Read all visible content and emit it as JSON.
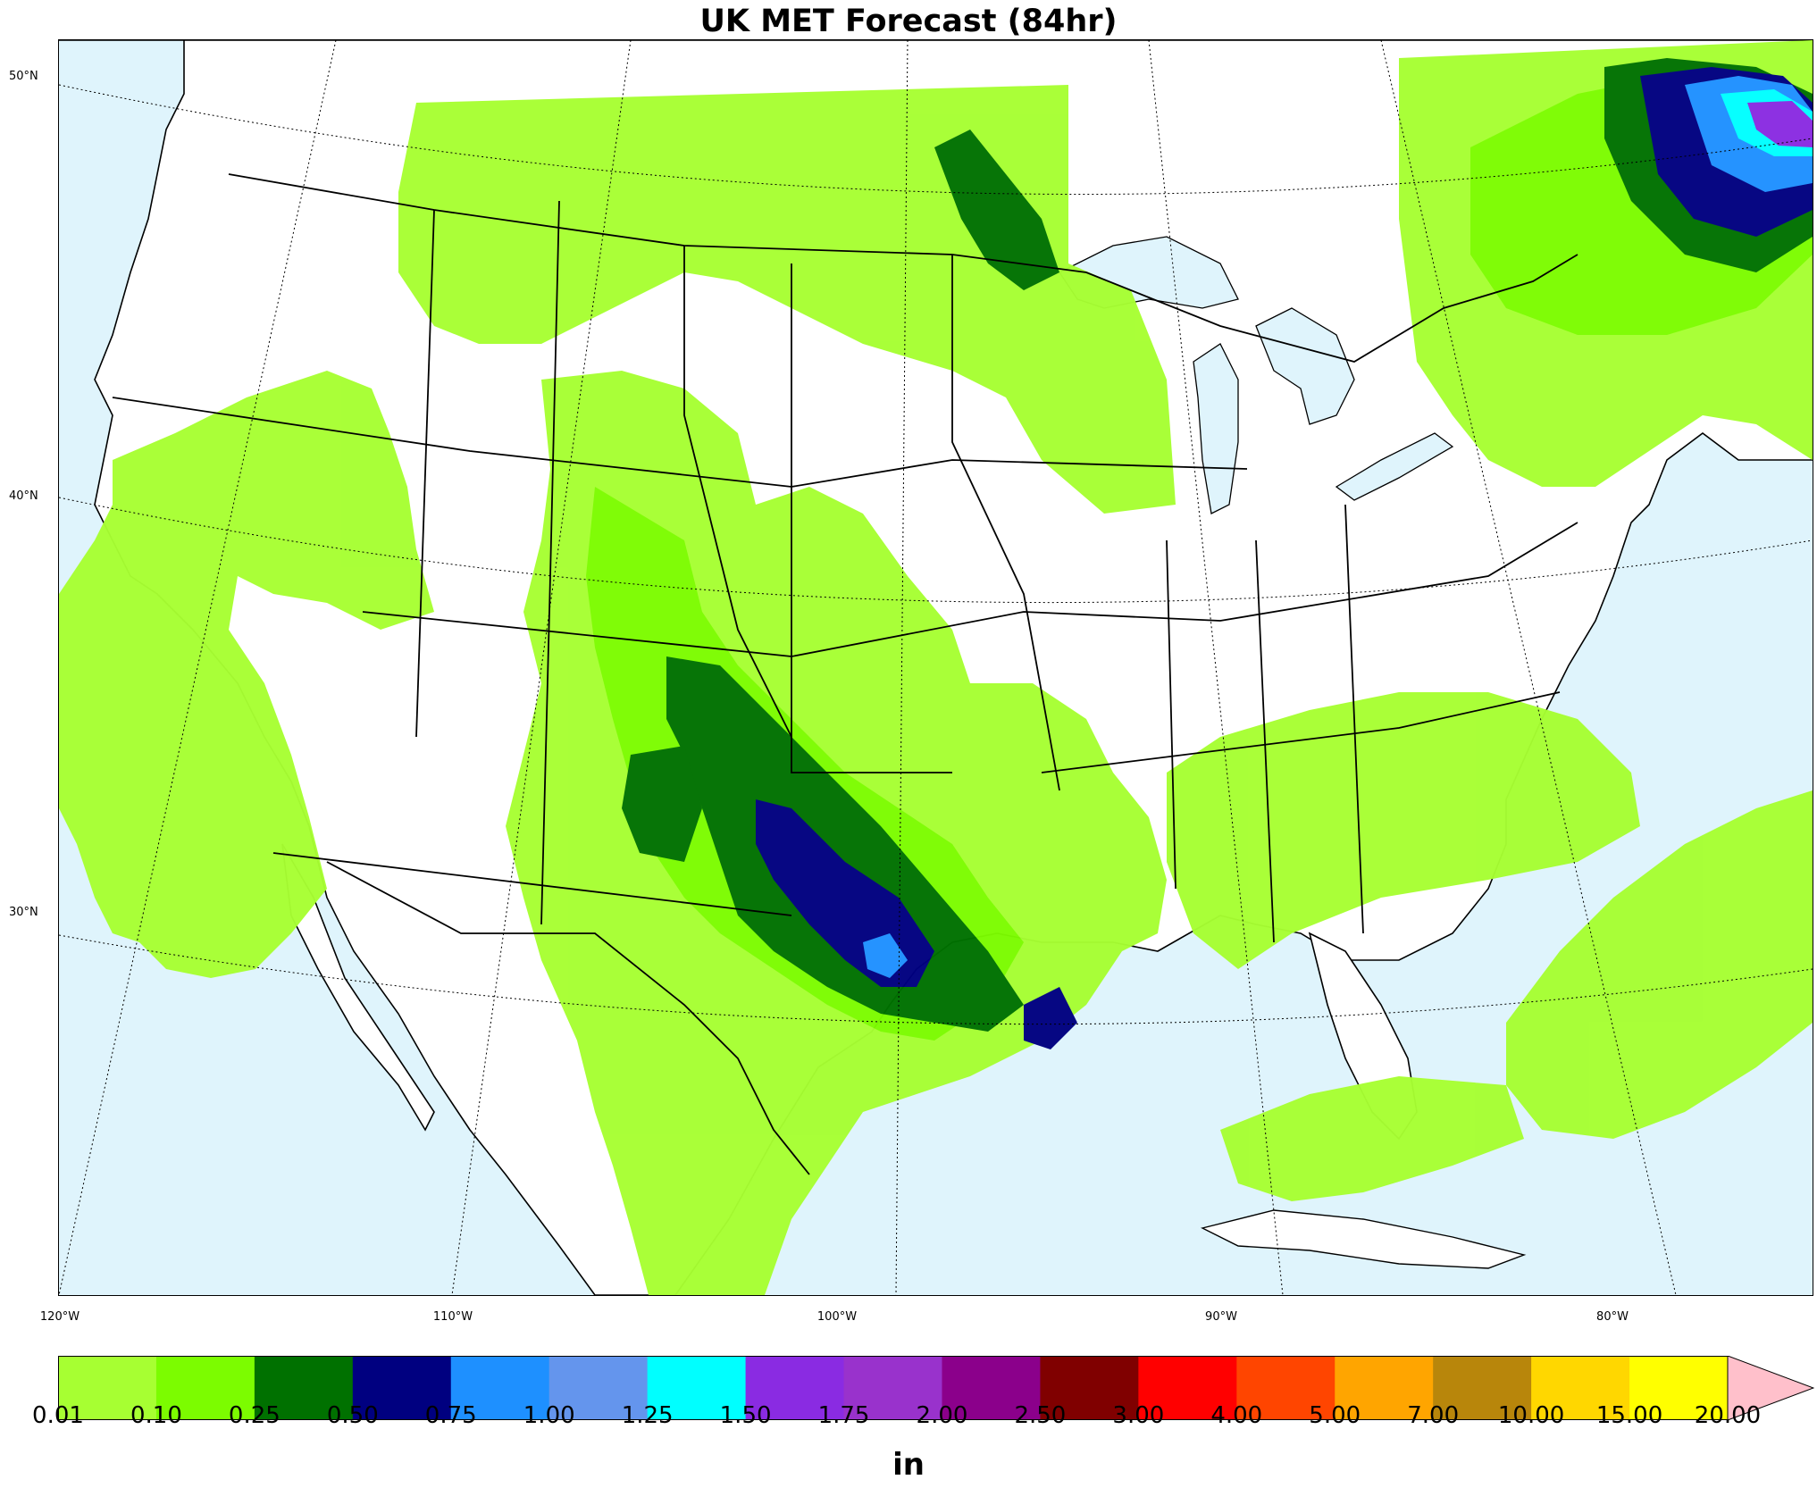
{
  "title": "UK MET Forecast (84hr)",
  "map": {
    "lat_labels": [
      "50°N",
      "40°N",
      "30°N"
    ],
    "lon_labels": [
      "120°W",
      "110°W",
      "100°W",
      "90°W",
      "80°W"
    ],
    "ocean_color": "#dff4fc",
    "land_color": "#ffffff"
  },
  "colorbar": {
    "units": "in",
    "ticks": [
      "0.01",
      "0.10",
      "0.25",
      "0.50",
      "0.75",
      "1.00",
      "1.25",
      "1.50",
      "1.75",
      "2.00",
      "2.50",
      "3.00",
      "4.00",
      "5.00",
      "7.00",
      "10.00",
      "15.00",
      "20.00"
    ],
    "colors": [
      "#a7ff32",
      "#7cfc00",
      "#007100",
      "#000080",
      "#1e90ff",
      "#6495ed",
      "#00ffff",
      "#8a2be2",
      "#9932cc",
      "#8b008b",
      "#800000",
      "#ff0000",
      "#ff4500",
      "#ffa500",
      "#b8860b",
      "#ffd700",
      "#ffff00"
    ],
    "extend_color": "#ffc0cb"
  }
}
